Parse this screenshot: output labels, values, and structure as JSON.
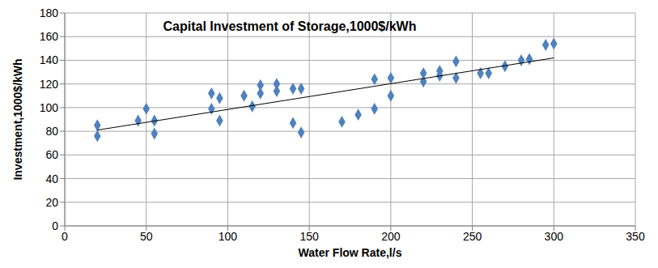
{
  "chart_data": {
    "type": "scatter",
    "title": "Capital Investment of Storage,1000$/kWh",
    "x_label": "Water Flow Rate,l/s",
    "y_label": "Investment,1000$/kWh",
    "xlim": [
      0,
      350
    ],
    "xticks": [
      0,
      50,
      100,
      150,
      200,
      250,
      300,
      350
    ],
    "ylim": [
      0,
      180
    ],
    "yticks": [
      0,
      20,
      40,
      60,
      80,
      100,
      120,
      140,
      160,
      180
    ],
    "grid": true,
    "series": [
      {
        "type": "scatter",
        "color": "#4f81bd",
        "marker": "diamond",
        "x": [
          20,
          20,
          45,
          50,
          55,
          55,
          90,
          90,
          95,
          95,
          110,
          115,
          120,
          120,
          130,
          130,
          140,
          140,
          145,
          145,
          170,
          180,
          190,
          190,
          200,
          200,
          220,
          220,
          230,
          230,
          240,
          240,
          255,
          260,
          270,
          280,
          285,
          295,
          300
        ],
        "values": [
          85,
          76,
          89,
          99,
          89,
          78,
          112,
          99,
          108,
          89,
          110,
          101,
          119,
          112,
          120,
          114,
          116,
          87,
          116,
          79,
          88,
          94,
          124,
          99,
          125,
          110,
          129,
          122,
          131,
          127,
          139,
          125,
          129,
          129,
          135,
          140,
          141,
          153,
          154
        ]
      },
      {
        "type": "line",
        "color": "#000000",
        "line_style": "solid",
        "x": [
          20,
          300
        ],
        "values": [
          81,
          142
        ]
      }
    ]
  }
}
